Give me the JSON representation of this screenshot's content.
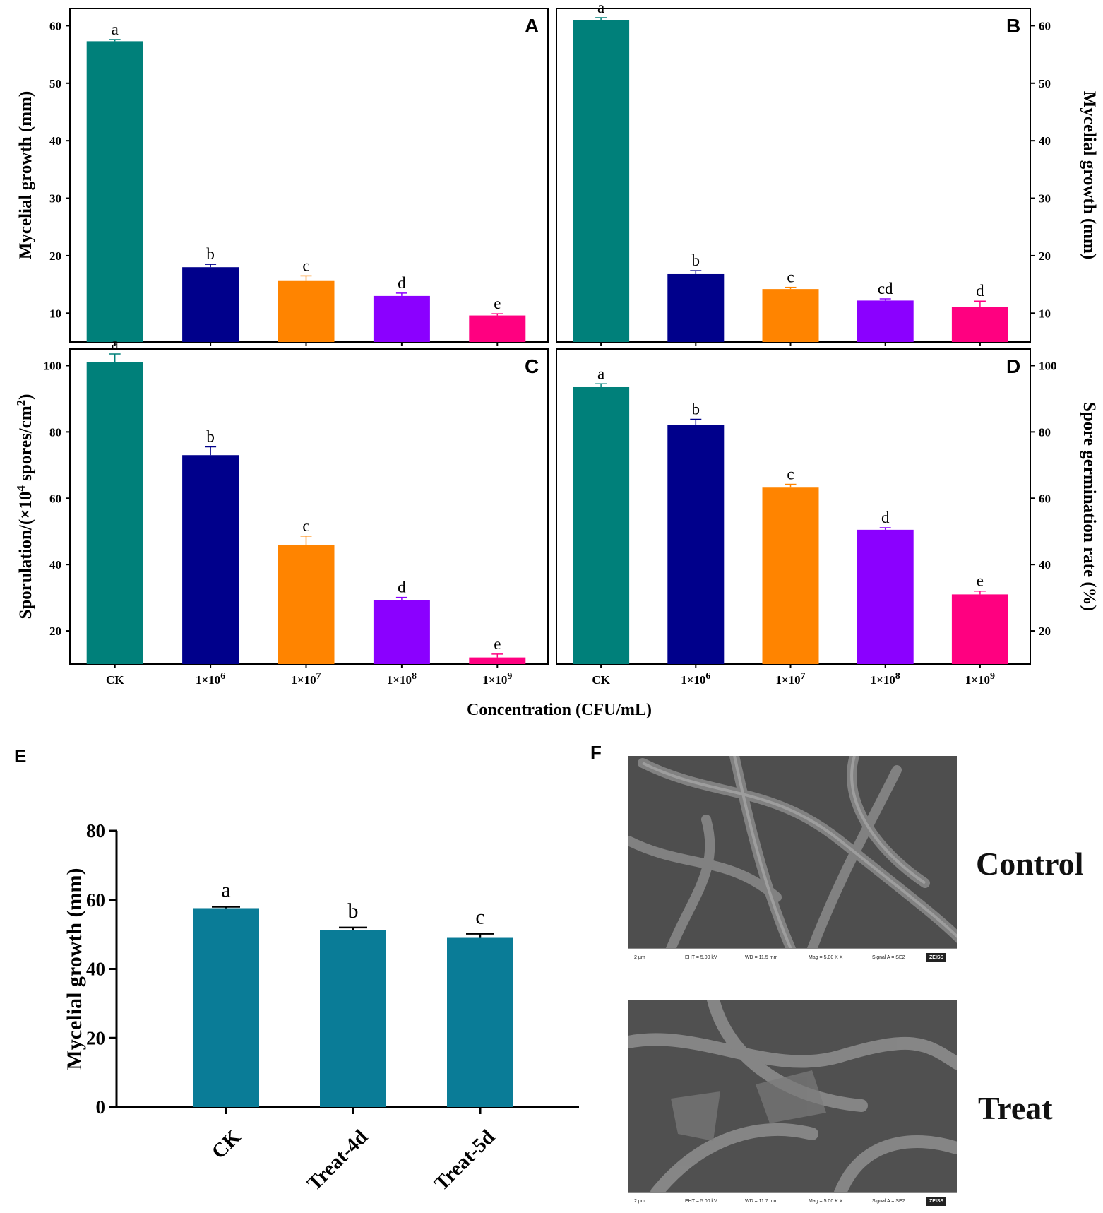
{
  "colors": {
    "teal": "#00807a",
    "navy": "#00008b",
    "orange": "#ff8400",
    "purple": "#8b00ff",
    "pink": "#ff0080",
    "blue_e": "#0a7c97",
    "axis": "#000000"
  },
  "shared": {
    "xlabel": "Concentration (CFU/mL)",
    "categories": [
      "CK",
      "1×10",
      "1×10",
      "1×10",
      "1×10"
    ],
    "exponents": [
      "",
      "6",
      "7",
      "8",
      "9"
    ]
  },
  "chart_data": [
    {
      "panel": "A",
      "type": "bar",
      "ylabel": "Mycelial growth (mm)",
      "ylim": [
        5,
        63
      ],
      "yticks": [
        10,
        20,
        30,
        40,
        50,
        60
      ],
      "values": [
        57.3,
        18.0,
        15.6,
        13.0,
        9.6
      ],
      "errors": [
        0.3,
        0.5,
        0.9,
        0.5,
        0.3
      ],
      "letters": [
        "a",
        "b",
        "c",
        "d",
        "e"
      ]
    },
    {
      "panel": "B",
      "type": "bar",
      "ylabel": "Mycelial growth (mm)",
      "ylim": [
        5,
        63
      ],
      "yticks": [
        10,
        20,
        30,
        40,
        50,
        60
      ],
      "values": [
        61.0,
        16.8,
        14.2,
        12.2,
        11.1
      ],
      "errors": [
        0.4,
        0.6,
        0.3,
        0.3,
        1.0
      ],
      "letters": [
        "a",
        "b",
        "c",
        "cd",
        "d"
      ]
    },
    {
      "panel": "C",
      "type": "bar",
      "ylabel_main": "Sporulation/(×10",
      "ylabel_exp1": "4",
      "ylabel_mid": " spores/cm",
      "ylabel_exp2": "2",
      "ylabel_end": ")",
      "ylim": [
        10,
        105
      ],
      "yticks": [
        20,
        40,
        60,
        80,
        100
      ],
      "values": [
        101.0,
        73.0,
        46.0,
        29.3,
        12.0
      ],
      "errors": [
        2.5,
        2.5,
        2.6,
        0.8,
        1.0
      ],
      "letters": [
        "a",
        "b",
        "c",
        "d",
        "e"
      ]
    },
    {
      "panel": "D",
      "type": "bar",
      "ylabel": "Spore germination rate (%)",
      "ylim": [
        10,
        105
      ],
      "yticks": [
        20,
        40,
        60,
        80,
        100
      ],
      "values": [
        93.5,
        82.0,
        63.2,
        50.5,
        31.0
      ],
      "errors": [
        1.0,
        1.8,
        1.0,
        0.6,
        1.0
      ],
      "letters": [
        "a",
        "b",
        "c",
        "d",
        "e"
      ]
    },
    {
      "panel": "E",
      "type": "bar",
      "ylabel": "Mycelial growth (mm)",
      "ylim": [
        0,
        80
      ],
      "yticks": [
        0,
        20,
        40,
        60,
        80
      ],
      "categories": [
        "CK",
        "Treat-4d",
        "Treat-5d"
      ],
      "values": [
        57.6,
        51.2,
        49.0
      ],
      "errors": [
        0.4,
        0.8,
        1.2
      ],
      "letters": [
        "a",
        "b",
        "c"
      ]
    }
  ],
  "panel_f": {
    "letter": "F",
    "images": [
      {
        "label": "Control",
        "scale": "2 µm",
        "eht": "EHT = 5.00 kV",
        "wd": "WD = 11.5 mm",
        "mag": "Mag = 5.00 K X",
        "signal": "Signal A = SE2",
        "brand": "ZEISS"
      },
      {
        "label": "Treat",
        "scale": "2 µm",
        "eht": "EHT = 5.00 kV",
        "wd": "WD = 11.7 mm",
        "mag": "Mag = 5.00 K X",
        "signal": "Signal A = SE2",
        "brand": "ZEISS"
      }
    ]
  }
}
